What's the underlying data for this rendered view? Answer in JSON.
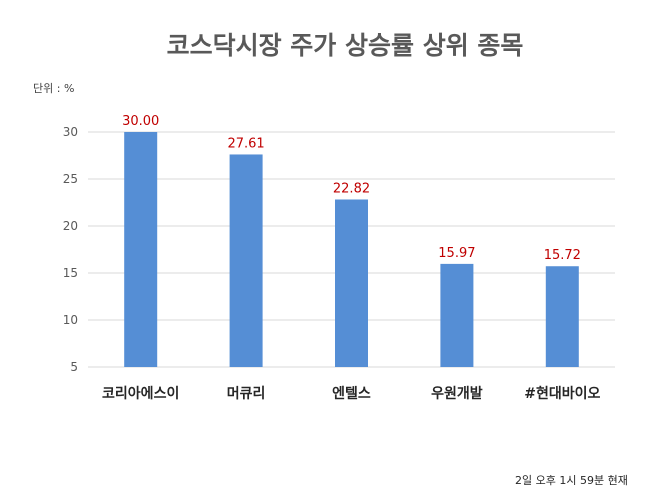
{
  "chart_data": {
    "type": "bar",
    "title": "코스닥시장 주가 상승률 상위 종목",
    "unit_label": "단위 : %",
    "categories": [
      "코리아에스이",
      "머큐리",
      "엔텔스",
      "우원개발",
      "#현대바이오"
    ],
    "values": [
      30.0,
      27.61,
      22.82,
      15.97,
      15.72
    ],
    "data_labels": [
      "30.00",
      "27.61",
      "22.82",
      "15.97",
      "15.72"
    ],
    "yticks": [
      5,
      10,
      15,
      20,
      25,
      30
    ],
    "ylim": [
      5,
      30
    ],
    "xlabel": "",
    "ylabel": "",
    "grid": true,
    "legend": "none",
    "colors": {
      "bar": "#558ed5",
      "data_label": "#c00000",
      "grid": "#d9d9d9"
    },
    "footnote": "2일  오후  1시 59분 현재"
  }
}
